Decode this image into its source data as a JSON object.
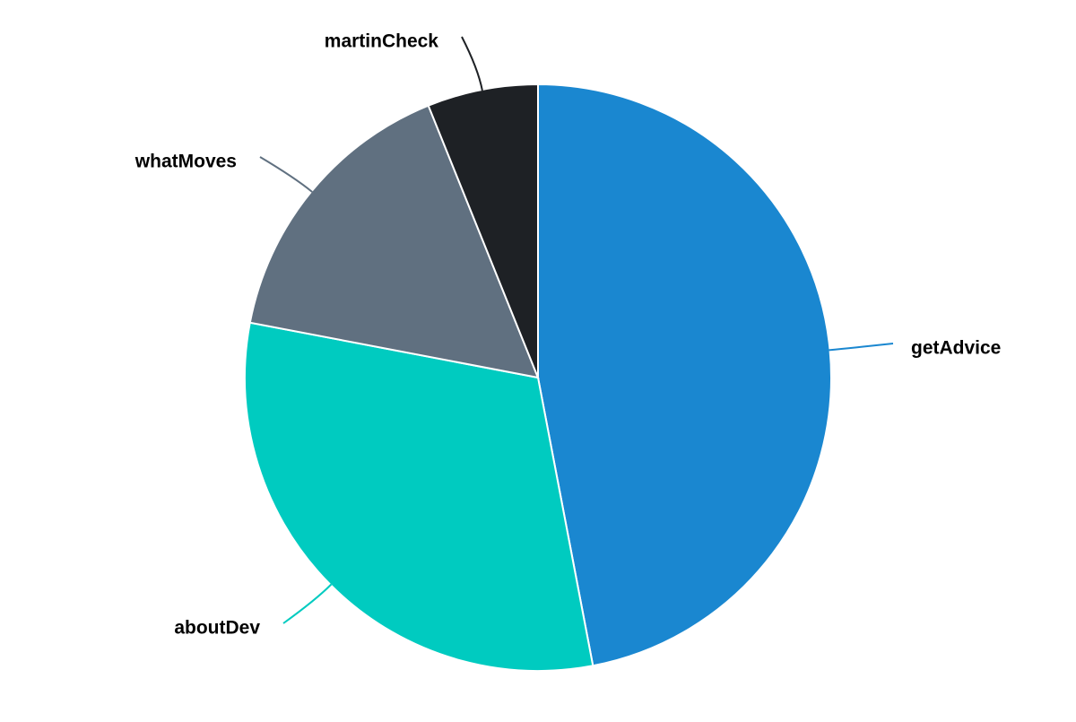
{
  "chart_data": {
    "type": "pie",
    "series": [
      {
        "label": "getAdvice",
        "value": 47,
        "color": "#1a87d0"
      },
      {
        "label": "aboutDev",
        "value": 31,
        "color": "#00cbc0"
      },
      {
        "label": "whatMoves",
        "value": 15.9,
        "color": "#607080"
      },
      {
        "label": "martinCheck",
        "value": 6.1,
        "color": "#1e2125"
      }
    ],
    "title": "",
    "legend": "none",
    "labels": "outside with leader lines"
  }
}
